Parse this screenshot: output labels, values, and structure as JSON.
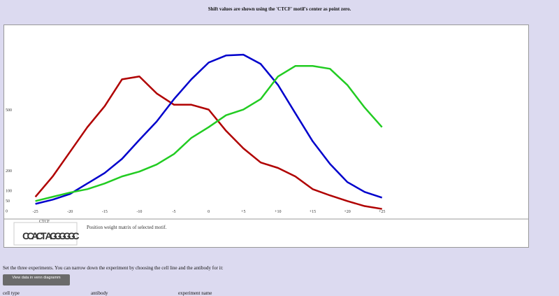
{
  "header": {
    "title": "Shift values are shown using the 'CTCF' motif's center as point zero."
  },
  "chart_data": {
    "type": "line",
    "x": [
      -25,
      -22.5,
      -20,
      -17.5,
      -15,
      -12.5,
      -10,
      -7.5,
      -5,
      -2.5,
      0,
      2.5,
      5,
      7.5,
      10,
      12.5,
      15,
      17.5,
      20,
      22.5,
      25
    ],
    "series": [
      {
        "color": "#b00000",
        "values": [
          70,
          171,
          293,
          415,
          519,
          652,
          666,
          582,
          526,
          526,
          502,
          397,
          310,
          240,
          213,
          171,
          108,
          77,
          49,
          24,
          10
        ]
      },
      {
        "color": "#0000cc",
        "values": [
          35,
          56,
          84,
          136,
          188,
          258,
          352,
          443,
          554,
          652,
          735,
          770,
          774,
          728,
          624,
          484,
          345,
          233,
          143,
          94,
          66
        ]
      },
      {
        "color": "#22cc22",
        "values": [
          49,
          70,
          91,
          108,
          136,
          171,
          195,
          230,
          282,
          362,
          415,
          474,
          502,
          554,
          666,
          718,
          718,
          704,
          624,
          512,
          415
        ]
      }
    ],
    "xlim": [
      -29.5,
      46.1
    ],
    "ylim": [
      -40,
      920
    ],
    "xticks": [
      -25,
      -20,
      -15,
      -10,
      -5,
      0,
      {
        "value": 5,
        "label": "+5"
      },
      {
        "value": 10,
        "label": "+10"
      },
      {
        "value": 15,
        "label": "+15"
      },
      {
        "value": 20,
        "label": "+20"
      },
      {
        "value": 25,
        "label": "+25"
      }
    ],
    "yticks": [
      0,
      50,
      100,
      200,
      500
    ]
  },
  "motif": {
    "name": "CTCF",
    "letters": [
      "C",
      "C",
      "A",
      "C",
      "T",
      "A",
      "G",
      "G",
      "G",
      "G",
      "G",
      "C"
    ],
    "caption": "Position weight matrix of selected motif."
  },
  "instructions": "Set the three experiments. You can narrow down the experiment by choosing the cell line and the antibody for it:",
  "button": "View data in venn diagramm",
  "columns": [
    "cell type",
    "antibody",
    "experiment name"
  ]
}
